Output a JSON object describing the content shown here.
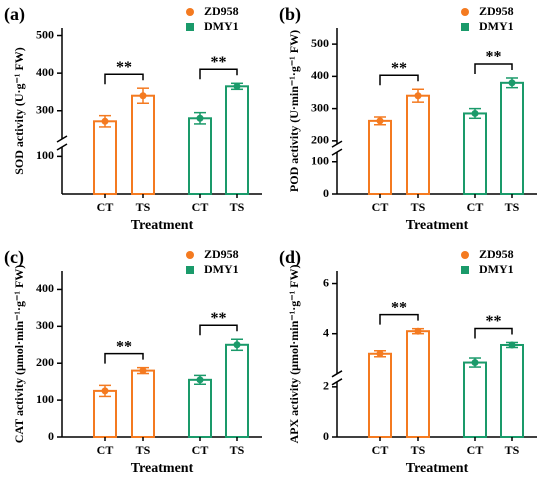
{
  "chart_data": [
    {
      "type": "bar",
      "panel": "(a)",
      "ylabel": "SOD activity (U·g⁻¹ FW)",
      "xlabel": "Treatment",
      "categories": [
        "CT",
        "TS"
      ],
      "series": [
        {
          "name": "ZD958",
          "color": "#f47a20",
          "values": [
            272,
            340
          ],
          "errors": [
            15,
            20
          ]
        },
        {
          "name": "DMY1",
          "color": "#1a9a6a",
          "values": [
            280,
            365
          ],
          "errors": [
            15,
            8
          ]
        }
      ],
      "annotations": [
        "**",
        "**"
      ],
      "ylim": [
        0,
        520
      ],
      "ybreak": [
        125,
        225
      ],
      "yticks": [
        100,
        300,
        400,
        500
      ]
    },
    {
      "type": "bar",
      "panel": "(b)",
      "ylabel": "POD activity (U·min⁻¹·g⁻¹ FW)",
      "xlabel": "Treatment",
      "categories": [
        "CT",
        "TS"
      ],
      "series": [
        {
          "name": "ZD958",
          "color": "#f47a20",
          "values": [
            262,
            340
          ],
          "errors": [
            12,
            20
          ]
        },
        {
          "name": "DMY1",
          "color": "#1a9a6a",
          "values": [
            285,
            380
          ],
          "errors": [
            15,
            15
          ]
        }
      ],
      "annotations": [
        "**",
        "**"
      ],
      "ylim": [
        0,
        550
      ],
      "ybreak": [
        130,
        190
      ],
      "yticks": [
        0,
        100,
        200,
        300,
        400,
        500
      ]
    },
    {
      "type": "bar",
      "panel": "(c)",
      "ylabel": "CAT activity (μmol·min⁻¹·g⁻¹ FW)",
      "xlabel": "Treatment",
      "categories": [
        "CT",
        "TS"
      ],
      "series": [
        {
          "name": "ZD958",
          "color": "#f47a20",
          "values": [
            125,
            180
          ],
          "errors": [
            15,
            8
          ]
        },
        {
          "name": "DMY1",
          "color": "#1a9a6a",
          "values": [
            155,
            250
          ],
          "errors": [
            12,
            15
          ]
        }
      ],
      "annotations": [
        "**",
        "**"
      ],
      "ylim": [
        0,
        450
      ],
      "yticks": [
        0,
        100,
        200,
        300,
        400
      ]
    },
    {
      "type": "bar",
      "panel": "(d)",
      "ylabel": "APX activity (μmol·min⁻¹·g⁻¹ FW)",
      "xlabel": "Treatment",
      "categories": [
        "CT",
        "TS"
      ],
      "series": [
        {
          "name": "ZD958",
          "color": "#f47a20",
          "values": [
            3.2,
            4.1
          ],
          "errors": [
            0.12,
            0.1
          ]
        },
        {
          "name": "DMY1",
          "color": "#1a9a6a",
          "values": [
            2.85,
            3.55
          ],
          "errors": [
            0.18,
            0.1
          ]
        }
      ],
      "annotations": [
        "**",
        "**"
      ],
      "ylim": [
        0,
        6.5
      ],
      "ybreak": [
        2.2,
        2.4
      ],
      "yticks": [
        0,
        2,
        4,
        6
      ]
    }
  ]
}
